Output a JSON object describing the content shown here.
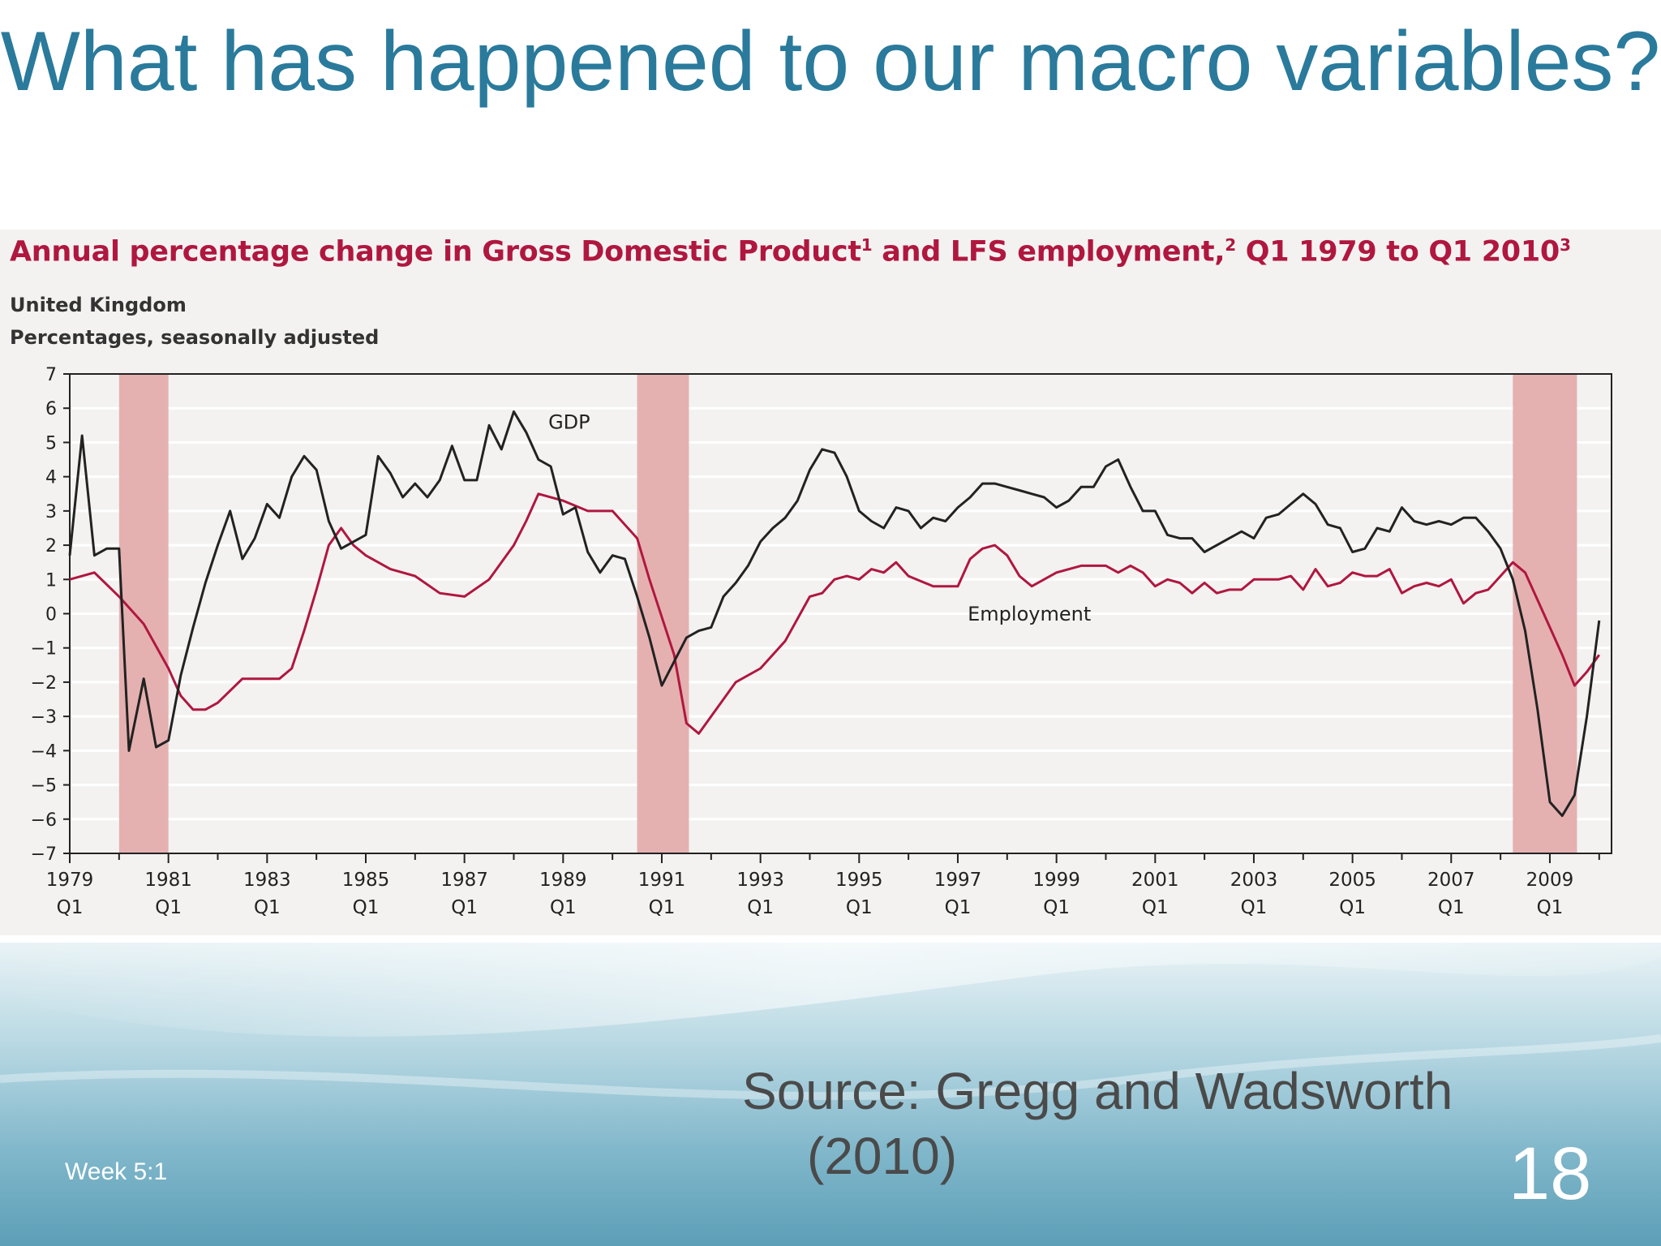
{
  "slide": {
    "title": "What has happened to our macro variables?",
    "source": "Source: Gregg and Wadsworth (2010)",
    "footer": "Week 5:1",
    "page_number": "18"
  },
  "colors": {
    "title": "#2a7a9c",
    "chart_title": "#b0173f",
    "gdp_line": "#222222",
    "employment_line": "#b0173f",
    "recession_band": "#e4b1b0"
  },
  "chart_data": {
    "type": "line",
    "title": "Annual percentage change in Gross Domestic Product1 and LFS employment,2 Q1 1979 to Q1 20103",
    "title_parts": {
      "a": "Annual percentage change in Gross Domestic Product",
      "sup1": "1",
      "b": " and LFS employment,",
      "sup2": "2",
      "c": " Q1 1979 to Q1 2010",
      "sup3": "3"
    },
    "subtitle_lines": [
      "United Kingdom",
      "Percentages, seasonally adjusted"
    ],
    "ylim": [
      -7,
      7
    ],
    "xlim": [
      1979.0,
      2010.25
    ],
    "yticks": [
      7,
      6,
      5,
      4,
      3,
      2,
      1,
      0,
      -1,
      -2,
      -3,
      -4,
      -5,
      -6,
      -7
    ],
    "ytick_labels": [
      "7",
      "6",
      "5",
      "4",
      "3",
      "2",
      "1",
      "0",
      "−1",
      "−2",
      "−3",
      "−4",
      "−5",
      "−6",
      "−7"
    ],
    "xtick_labels": [
      {
        "year": "1979",
        "q": "Q1",
        "x": 1979
      },
      {
        "year": "1981",
        "q": "Q1",
        "x": 1981
      },
      {
        "year": "1983",
        "q": "Q1",
        "x": 1983
      },
      {
        "year": "1985",
        "q": "Q1",
        "x": 1985
      },
      {
        "year": "1987",
        "q": "Q1",
        "x": 1987
      },
      {
        "year": "1989",
        "q": "Q1",
        "x": 1989
      },
      {
        "year": "1991",
        "q": "Q1",
        "x": 1991
      },
      {
        "year": "1993",
        "q": "Q1",
        "x": 1993
      },
      {
        "year": "1995",
        "q": "Q1",
        "x": 1995
      },
      {
        "year": "1997",
        "q": "Q1",
        "x": 1997
      },
      {
        "year": "1999",
        "q": "Q1",
        "x": 1999
      },
      {
        "year": "2001",
        "q": "Q1",
        "x": 2001
      },
      {
        "year": "2003",
        "q": "Q1",
        "x": 2003
      },
      {
        "year": "2005",
        "q": "Q1",
        "x": 2005
      },
      {
        "year": "2007",
        "q": "Q1",
        "x": 2007
      },
      {
        "year": "2009",
        "q": "Q1",
        "x": 2009
      }
    ],
    "grid": true,
    "recession_bands": [
      [
        1980.0,
        1981.0
      ],
      [
        1990.5,
        1991.55
      ],
      [
        2008.25,
        2009.55
      ]
    ],
    "series": [
      {
        "name": "GDP",
        "label_at": [
          1988.7,
          5.4
        ],
        "x": [
          1979.0,
          1979.25,
          1979.5,
          1979.75,
          1980.0,
          1980.2,
          1980.5,
          1980.75,
          1981.0,
          1981.25,
          1981.5,
          1981.75,
          1982.0,
          1982.25,
          1982.5,
          1982.75,
          1983.0,
          1983.25,
          1983.5,
          1983.75,
          1984.0,
          1984.25,
          1984.5,
          1984.75,
          1985.0,
          1985.25,
          1985.5,
          1985.75,
          1986.0,
          1986.25,
          1986.5,
          1986.75,
          1987.0,
          1987.25,
          1987.5,
          1987.75,
          1988.0,
          1988.25,
          1988.5,
          1988.75,
          1989.0,
          1989.25,
          1989.5,
          1989.75,
          1990.0,
          1990.25,
          1990.5,
          1990.75,
          1991.0,
          1991.25,
          1991.5,
          1991.75,
          1992.0,
          1992.25,
          1992.5,
          1992.75,
          1993.0,
          1993.25,
          1993.5,
          1993.75,
          1994.0,
          1994.25,
          1994.5,
          1994.75,
          1995.0,
          1995.25,
          1995.5,
          1995.75,
          1996.0,
          1996.25,
          1996.5,
          1996.75,
          1997.0,
          1997.25,
          1997.5,
          1997.75,
          1998.0,
          1998.25,
          1998.5,
          1998.75,
          1999.0,
          1999.25,
          1999.5,
          1999.75,
          2000.0,
          2000.25,
          2000.5,
          2000.75,
          2001.0,
          2001.25,
          2001.5,
          2001.75,
          2002.0,
          2002.25,
          2002.5,
          2002.75,
          2003.0,
          2003.25,
          2003.5,
          2003.75,
          2004.0,
          2004.25,
          2004.5,
          2004.75,
          2005.0,
          2005.25,
          2005.5,
          2005.75,
          2006.0,
          2006.25,
          2006.5,
          2006.75,
          2007.0,
          2007.25,
          2007.5,
          2007.75,
          2008.0,
          2008.25,
          2008.5,
          2008.75,
          2009.0,
          2009.25,
          2009.5,
          2009.75,
          2010.0
        ],
        "values": [
          1.7,
          5.2,
          1.7,
          1.9,
          1.9,
          -4.0,
          -1.9,
          -3.9,
          -3.7,
          -1.8,
          -0.4,
          0.9,
          2.0,
          3.0,
          1.6,
          2.2,
          3.2,
          2.8,
          4.0,
          4.6,
          4.2,
          2.7,
          1.9,
          2.1,
          2.3,
          4.6,
          4.1,
          3.4,
          3.8,
          3.4,
          3.9,
          4.9,
          3.9,
          3.9,
          5.5,
          4.8,
          5.9,
          5.3,
          4.5,
          4.3,
          2.9,
          3.1,
          1.8,
          1.2,
          1.7,
          1.6,
          0.5,
          -0.7,
          -2.1,
          -1.4,
          -0.7,
          -0.5,
          -0.4,
          0.5,
          0.9,
          1.4,
          2.1,
          2.5,
          2.8,
          3.3,
          4.2,
          4.8,
          4.7,
          4.0,
          3.0,
          2.7,
          2.5,
          3.1,
          3.0,
          2.5,
          2.8,
          2.7,
          3.1,
          3.4,
          3.8,
          3.8,
          3.7,
          3.6,
          3.5,
          3.4,
          3.1,
          3.3,
          3.7,
          3.7,
          4.3,
          4.5,
          3.7,
          3.0,
          3.0,
          2.3,
          2.2,
          2.2,
          1.8,
          2.0,
          2.2,
          2.4,
          2.2,
          2.8,
          2.9,
          3.2,
          3.5,
          3.2,
          2.6,
          2.5,
          1.8,
          1.9,
          2.5,
          2.4,
          3.1,
          2.7,
          2.6,
          2.7,
          2.6,
          2.8,
          2.8,
          2.4,
          1.9,
          1.0,
          -0.5,
          -2.8,
          -5.5,
          -5.9,
          -5.3,
          -3.0,
          -0.2
        ]
      },
      {
        "name": "Employment",
        "label_at": [
          1997.2,
          -0.2
        ],
        "x": [
          1979.0,
          1979.5,
          1980.0,
          1980.5,
          1981.0,
          1981.25,
          1981.5,
          1981.75,
          1982.0,
          1982.5,
          1983.0,
          1983.25,
          1983.5,
          1983.75,
          1984.0,
          1984.25,
          1984.5,
          1984.75,
          1985.0,
          1985.5,
          1986.0,
          1986.5,
          1987.0,
          1987.5,
          1988.0,
          1988.25,
          1988.5,
          1989.0,
          1989.5,
          1990.0,
          1990.5,
          1990.75,
          1991.0,
          1991.25,
          1991.5,
          1991.75,
          1992.0,
          1992.5,
          1993.0,
          1993.5,
          1994.0,
          1994.25,
          1994.5,
          1994.75,
          1995.0,
          1995.25,
          1995.5,
          1995.75,
          1996.0,
          1996.5,
          1997.0,
          1997.25,
          1997.5,
          1997.75,
          1998.0,
          1998.25,
          1998.5,
          1999.0,
          1999.5,
          2000.0,
          2000.25,
          2000.5,
          2000.75,
          2001.0,
          2001.25,
          2001.5,
          2001.75,
          2002.0,
          2002.25,
          2002.5,
          2002.75,
          2003.0,
          2003.25,
          2003.5,
          2003.75,
          2004.0,
          2004.25,
          2004.5,
          2004.75,
          2005.0,
          2005.25,
          2005.5,
          2005.75,
          2006.0,
          2006.25,
          2006.5,
          2006.75,
          2007.0,
          2007.25,
          2007.5,
          2007.75,
          2008.0,
          2008.25,
          2008.5,
          2008.75,
          2009.0,
          2009.25,
          2009.5,
          2009.75,
          2010.0
        ],
        "values": [
          1.0,
          1.2,
          0.5,
          -0.3,
          -1.6,
          -2.4,
          -2.8,
          -2.8,
          -2.6,
          -1.9,
          -1.9,
          -1.9,
          -1.6,
          -0.5,
          0.7,
          2.0,
          2.5,
          2.0,
          1.7,
          1.3,
          1.1,
          0.6,
          0.5,
          1.0,
          2.0,
          2.7,
          3.5,
          3.3,
          3.0,
          3.0,
          2.2,
          1.0,
          -0.1,
          -1.2,
          -3.2,
          -3.5,
          -3.0,
          -2.0,
          -1.6,
          -0.8,
          0.5,
          0.6,
          1.0,
          1.1,
          1.0,
          1.3,
          1.2,
          1.5,
          1.1,
          0.8,
          0.8,
          1.6,
          1.9,
          2.0,
          1.7,
          1.1,
          0.8,
          1.2,
          1.4,
          1.4,
          1.2,
          1.4,
          1.2,
          0.8,
          1.0,
          0.9,
          0.6,
          0.9,
          0.6,
          0.7,
          0.7,
          1.0,
          1.0,
          1.0,
          1.1,
          0.7,
          1.3,
          0.8,
          0.9,
          1.2,
          1.1,
          1.1,
          1.3,
          0.6,
          0.8,
          0.9,
          0.8,
          1.0,
          0.3,
          0.6,
          0.7,
          1.1,
          1.5,
          1.2,
          0.4,
          -0.4,
          -1.2,
          -2.1,
          -1.7,
          -1.2
        ]
      }
    ]
  }
}
